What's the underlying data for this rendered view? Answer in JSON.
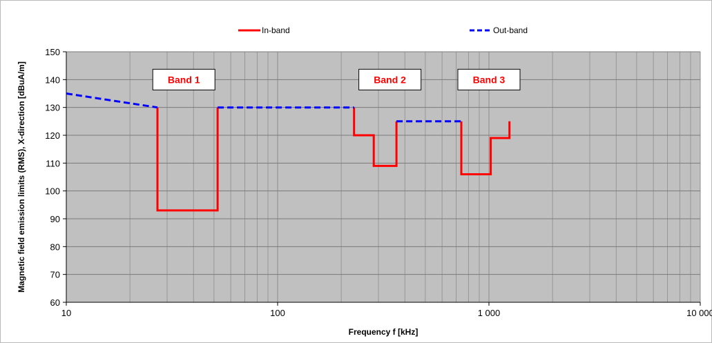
{
  "chart_data": {
    "type": "line",
    "xscale": "log",
    "xlim": [
      10,
      10000
    ],
    "ylim": [
      60,
      150
    ],
    "grid": true,
    "legend_placement": "top",
    "xlabel": "Frequency f [kHz]",
    "ylabel": "Magnetic field emission limits (RMS), X-direction [dBuA/m]",
    "x_tick_labels": [
      "10",
      "100",
      "1 000",
      "10 000"
    ],
    "x_ticks": [
      10,
      100,
      1000,
      10000
    ],
    "y_ticks": [
      60,
      70,
      80,
      90,
      100,
      110,
      120,
      130,
      140,
      150
    ],
    "plot_background": "#c0c0c0",
    "series": [
      {
        "name": "In-band",
        "color": "#ff0000",
        "style": "solid",
        "segments": [
          {
            "x": [
              27,
              27,
              52,
              52
            ],
            "y": [
              130,
              93,
              93,
              130
            ]
          },
          {
            "x": [
              230,
              230,
              285,
              285,
              365,
              365
            ],
            "y": [
              130,
              120,
              120,
              109,
              109,
              125
            ]
          },
          {
            "x": [
              740,
              740,
              1020,
              1020,
              1250,
              1250
            ],
            "y": [
              125,
              106,
              106,
              119,
              119,
              125
            ]
          }
        ]
      },
      {
        "name": "Out-band",
        "color": "#0000ff",
        "style": "dashed",
        "segments": [
          {
            "x": [
              10,
              27
            ],
            "y": [
              135,
              130
            ]
          },
          {
            "x": [
              52,
              230
            ],
            "y": [
              130,
              130
            ]
          },
          {
            "x": [
              365,
              740
            ],
            "y": [
              125,
              125
            ]
          }
        ]
      }
    ],
    "annotations": [
      {
        "text": "Band 1",
        "x": 36,
        "y": 140,
        "color": "#ff0000"
      },
      {
        "text": "Band 2",
        "x": 340,
        "y": 140,
        "color": "#ff0000"
      },
      {
        "text": "Band 3",
        "x": 1000,
        "y": 140,
        "color": "#ff0000"
      }
    ]
  }
}
